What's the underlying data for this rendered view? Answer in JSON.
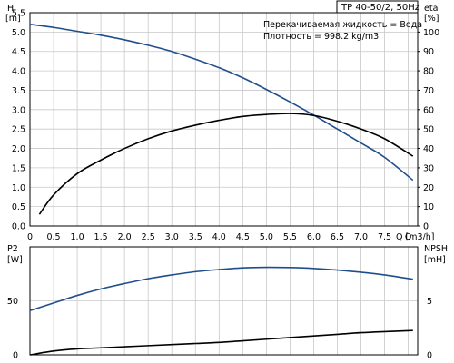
{
  "chart_data": [
    {
      "type": "line",
      "title": "TP 40-50/2, 50Hz",
      "annotations": [
        "Перекачиваемая жидкость = Вода",
        "Плотность = 998.2 kg/m3"
      ],
      "x_unit": "Q [m3/h]",
      "left_axis": {
        "label": "H",
        "unit": "[m]",
        "ylim": [
          0,
          5.5
        ],
        "ticks": [
          "0.0",
          "0.5",
          "1.0",
          "1.5",
          "2.0",
          "2.5",
          "3.0",
          "3.5",
          "4.0",
          "4.5",
          "5.0",
          "5.5"
        ]
      },
      "right_axis": {
        "label": "eta",
        "unit": "[%]",
        "ylim": [
          0,
          110
        ],
        "ticks": [
          "0",
          "10",
          "20",
          "30",
          "40",
          "50",
          "60",
          "70",
          "80",
          "90",
          "100"
        ]
      },
      "xlim": [
        0,
        8.2
      ],
      "x_ticks": [
        "0",
        "0.5",
        "1.0",
        "1.5",
        "2.0",
        "2.5",
        "3.0",
        "3.5",
        "4.0",
        "4.5",
        "5.0",
        "5.5",
        "6.0",
        "6.5",
        "7.0",
        "7.5"
      ],
      "grid": true,
      "series": [
        {
          "axis": "left",
          "color": "#1f4e8c",
          "x": [
            0,
            0.5,
            1,
            1.5,
            2,
            2.5,
            3,
            3.5,
            4,
            4.5,
            5,
            5.5,
            6,
            6.5,
            7,
            7.5,
            8.1
          ],
          "y": [
            5.2,
            5.12,
            5.02,
            4.92,
            4.8,
            4.66,
            4.5,
            4.3,
            4.08,
            3.82,
            3.52,
            3.2,
            2.86,
            2.5,
            2.14,
            1.77,
            1.18
          ]
        },
        {
          "axis": "right",
          "color": "#000000",
          "x": [
            0.2,
            0.5,
            1,
            1.5,
            2,
            2.5,
            3,
            3.5,
            4,
            4.5,
            5,
            5.5,
            6,
            6.5,
            7,
            7.5,
            8.1
          ],
          "y": [
            6,
            16,
            27,
            34,
            40,
            45,
            49,
            52,
            54.5,
            56.5,
            57.5,
            58,
            57,
            54,
            50,
            45,
            36
          ]
        }
      ]
    },
    {
      "type": "line",
      "left_axis": {
        "label": "P2",
        "unit": "[W]",
        "ylim": [
          0,
          100
        ],
        "ticks": [
          "0",
          "50"
        ]
      },
      "right_axis": {
        "label": "NPSH",
        "unit": "[mH]",
        "ylim": [
          0,
          10
        ],
        "ticks": [
          "0",
          "5"
        ]
      },
      "xlim": [
        0,
        8.2
      ],
      "grid": true,
      "series": [
        {
          "axis": "left",
          "color": "#1f4e8c",
          "x": [
            0,
            0.5,
            1,
            1.5,
            2,
            2.5,
            3,
            3.5,
            4,
            4.5,
            5,
            5.5,
            6,
            6.5,
            7,
            7.5,
            8.1
          ],
          "y": [
            41,
            48,
            55,
            61,
            66,
            70.5,
            74,
            77,
            79,
            80.5,
            81,
            80.8,
            80,
            78.5,
            76.5,
            74,
            70
          ]
        },
        {
          "axis": "right",
          "color": "#000000",
          "x": [
            0,
            0.5,
            1,
            1.5,
            2,
            2.5,
            3,
            3.5,
            4,
            4.5,
            5,
            5.5,
            6,
            6.5,
            7,
            7.5,
            8.1
          ],
          "y": [
            0,
            0.35,
            0.55,
            0.65,
            0.75,
            0.85,
            0.95,
            1.05,
            1.15,
            1.3,
            1.45,
            1.6,
            1.75,
            1.9,
            2.05,
            2.15,
            2.25
          ]
        }
      ]
    }
  ]
}
